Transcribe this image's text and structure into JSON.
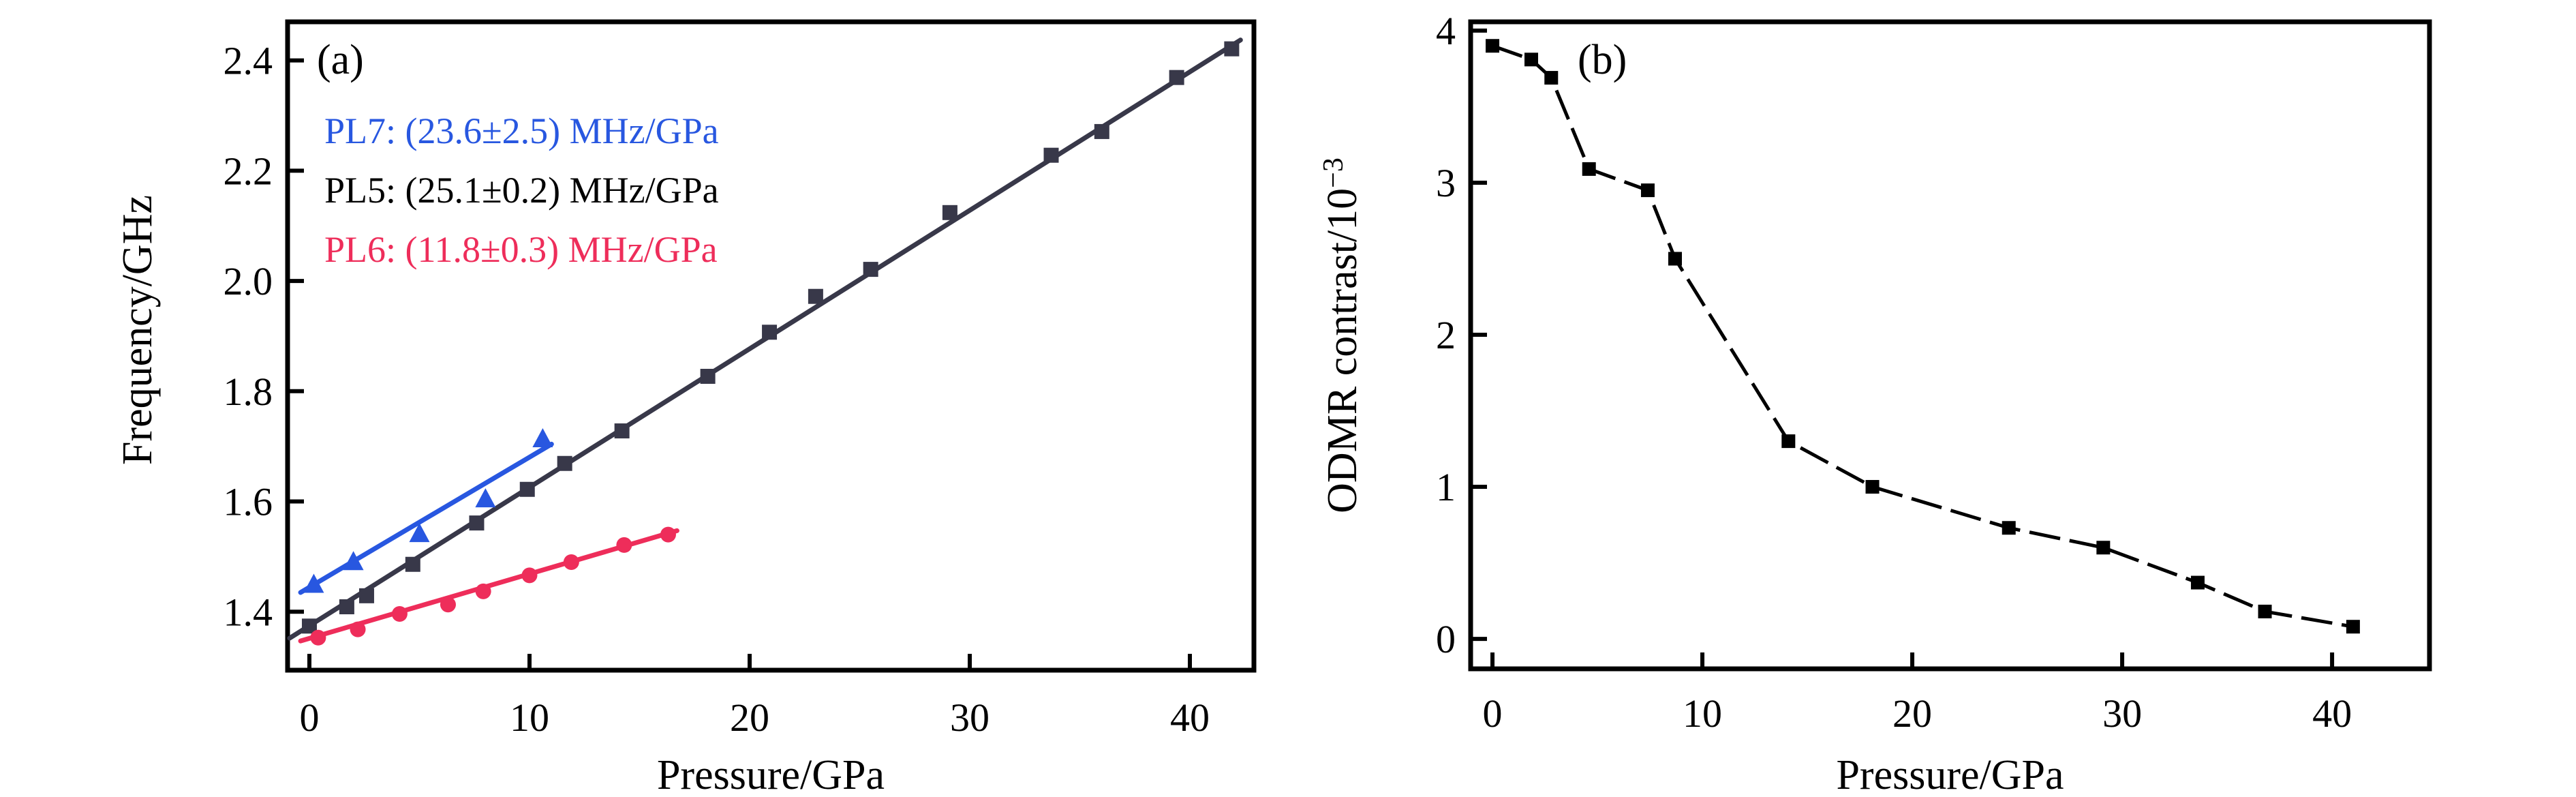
{
  "figure": {
    "background": "#ffffff",
    "description": "Two-panel scientific figure: pressure dependence of ODMR frequency and contrast"
  },
  "colors": {
    "pl7_blue": "#2857E0",
    "pl5_black_text": "#000000",
    "pl5_marker": "#383849",
    "pl6_red": "#EE2D5A",
    "panel_b_series": "#000000",
    "axis": "#000000"
  },
  "chart_data": [
    {
      "panel": "a",
      "type": "scatter",
      "panel_label": "(a)",
      "xlabel": "Pressure/GPa",
      "ylabel": "Frequency/GHz",
      "xlim": [
        -0.99,
        42.91
      ],
      "ylim": [
        1.294,
        2.47
      ],
      "x_ticks": [
        0,
        10,
        20,
        30,
        40
      ],
      "y_ticks": [
        1.4,
        1.6,
        1.8,
        2.0,
        2.2,
        2.4
      ],
      "y_tick_labels": [
        "1.4",
        "1.6",
        "1.8",
        "2.0",
        "2.2",
        "2.4"
      ],
      "grid": false,
      "legend_position": "upper-left-annotations",
      "annotations": [
        {
          "text": "PL7: (23.6±2.5) MHz/GPa",
          "color": "#2857E0"
        },
        {
          "text": "PL5: (25.1±0.2) MHz/GPa",
          "color": "#000000"
        },
        {
          "text": "PL6: (11.8±0.3) MHz/GPa",
          "color": "#EE2D5A"
        }
      ],
      "series": [
        {
          "name": "PL5",
          "marker": "square",
          "color": "#383849",
          "line_style": "solid",
          "fit_line": {
            "x": [
              -0.9,
              42.3
            ],
            "y": [
              1.352,
              2.437
            ]
          },
          "points": [
            [
              0.0,
              1.374
            ],
            [
              1.7,
              1.409
            ],
            [
              2.6,
              1.429
            ],
            [
              4.7,
              1.486
            ],
            [
              7.6,
              1.561
            ],
            [
              9.9,
              1.622
            ],
            [
              11.6,
              1.669
            ],
            [
              14.2,
              1.728
            ],
            [
              18.1,
              1.827
            ],
            [
              20.9,
              1.907
            ],
            [
              23.0,
              1.972
            ],
            [
              25.5,
              2.021
            ],
            [
              29.1,
              2.124
            ],
            [
              33.7,
              2.228
            ],
            [
              36.0,
              2.271
            ],
            [
              39.4,
              2.369
            ],
            [
              41.9,
              2.421
            ]
          ]
        },
        {
          "name": "PL7",
          "marker": "triangle",
          "color": "#2857E0",
          "line_style": "solid",
          "fit_line": {
            "x": [
              -0.4,
              11.0
            ],
            "y": [
              1.435,
              1.704
            ]
          },
          "points": [
            [
              0.2,
              1.448
            ],
            [
              2.0,
              1.489
            ],
            [
              5.0,
              1.54
            ],
            [
              8.0,
              1.603
            ],
            [
              10.6,
              1.712
            ]
          ]
        },
        {
          "name": "PL6",
          "marker": "circle",
          "color": "#EE2D5A",
          "line_style": "solid",
          "fit_line": {
            "x": [
              -0.4,
              16.7
            ],
            "y": [
              1.347,
              1.547
            ]
          },
          "points": [
            [
              0.4,
              1.353
            ],
            [
              2.2,
              1.368
            ],
            [
              4.1,
              1.396
            ],
            [
              6.3,
              1.413
            ],
            [
              7.9,
              1.437
            ],
            [
              10.0,
              1.466
            ],
            [
              11.9,
              1.49
            ],
            [
              14.3,
              1.521
            ],
            [
              16.3,
              1.54
            ]
          ]
        }
      ]
    },
    {
      "panel": "b",
      "type": "line",
      "panel_label": "(b)",
      "xlabel": "Pressure/GPa",
      "ylabel_main": "ODMR contrast/10",
      "ylabel_sup": "−3",
      "xlim": [
        -1.04,
        44.64
      ],
      "ylim": [
        -0.197,
        4.058
      ],
      "x_ticks": [
        0,
        10,
        20,
        30,
        40
      ],
      "y_ticks": [
        0,
        1,
        2,
        3,
        4
      ],
      "y_tick_labels": [
        "0",
        "1",
        "2",
        "3",
        "4"
      ],
      "grid": false,
      "series": [
        {
          "name": "ODMR contrast",
          "marker": "square",
          "color": "#000000",
          "line_style": "dashed",
          "points": [
            [
              0.0,
              3.9
            ],
            [
              1.85,
              3.81
            ],
            [
              2.8,
              3.69
            ],
            [
              4.6,
              3.09
            ],
            [
              7.4,
              2.95
            ],
            [
              8.7,
              2.5
            ],
            [
              14.1,
              1.3
            ],
            [
              18.1,
              1.0
            ],
            [
              24.6,
              0.73
            ],
            [
              29.1,
              0.6
            ],
            [
              33.6,
              0.37
            ],
            [
              36.8,
              0.18
            ],
            [
              41.0,
              0.08
            ]
          ]
        }
      ]
    }
  ]
}
